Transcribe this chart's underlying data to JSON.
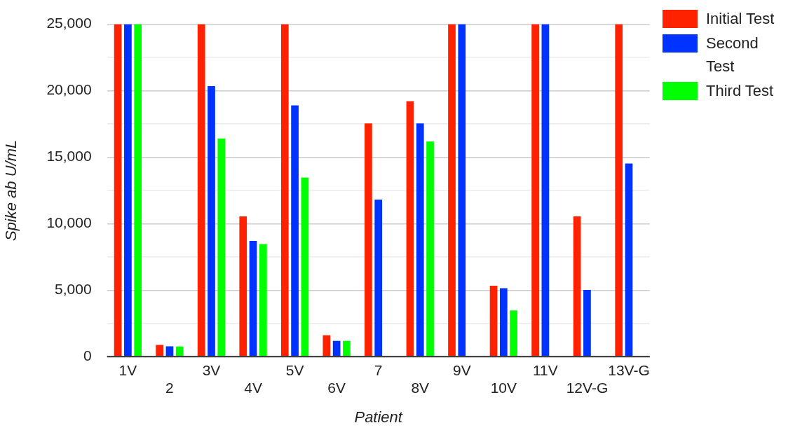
{
  "chart_data": {
    "type": "bar",
    "xlabel": "Patient",
    "ylabel": "Spike ab U/mL",
    "categories": [
      "1V",
      "2",
      "3V",
      "4V",
      "5V",
      "6V",
      "7",
      "8V",
      "9V",
      "10V",
      "11V",
      "12V-G",
      "13V-G"
    ],
    "series": [
      {
        "name": "Initial Test",
        "color": "#ff2200",
        "values": [
          25000,
          880,
          25000,
          10550,
          25000,
          1600,
          17540,
          19210,
          25000,
          5330,
          25000,
          10550,
          25000
        ]
      },
      {
        "name": "Second Test",
        "color": "#0033ff",
        "values": [
          25000,
          780,
          20350,
          8700,
          18890,
          1180,
          11810,
          17540,
          25000,
          5140,
          25000,
          5020,
          14520
        ]
      },
      {
        "name": "Third Test",
        "color": "#00ff00",
        "values": [
          25000,
          760,
          16400,
          8470,
          13470,
          1180,
          null,
          16180,
          null,
          3470,
          null,
          null,
          null
        ]
      }
    ],
    "ylim": [
      0,
      25000
    ],
    "yticks": [
      {
        "value": 0,
        "label": "0"
      },
      {
        "value": 2500,
        "label": null
      },
      {
        "value": 5000,
        "label": "5,000"
      },
      {
        "value": 7500,
        "label": null
      },
      {
        "value": 10000,
        "label": "10,000"
      },
      {
        "value": 12500,
        "label": null
      },
      {
        "value": 15000,
        "label": "15,000"
      },
      {
        "value": 17500,
        "label": null
      },
      {
        "value": 20000,
        "label": "20,000"
      },
      {
        "value": 22500,
        "label": null
      },
      {
        "value": 25000,
        "label": "25,000"
      }
    ],
    "grid": "y",
    "legend": "top right"
  }
}
